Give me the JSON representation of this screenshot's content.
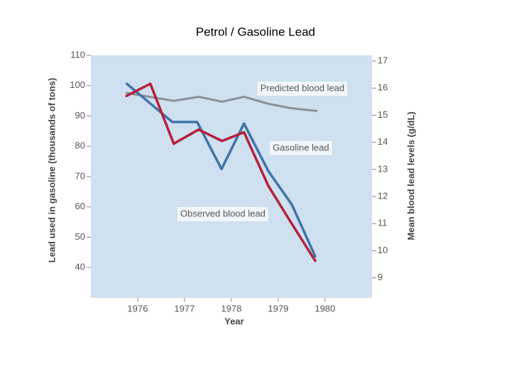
{
  "chart_data": {
    "type": "line",
    "title": "Petrol / Gasoline Lead",
    "x_label": "Year",
    "y_label": "Lead used in gasoline (thousands of tons)",
    "y2_label": "Mean blood lead levels (g/dL)",
    "xlim": [
      1975,
      1981
    ],
    "xticks": [
      1976,
      1977,
      1978,
      1979,
      1980
    ],
    "ylim": [
      30,
      110
    ],
    "yticks": [
      40,
      50,
      60,
      70,
      80,
      90,
      100,
      110
    ],
    "y2lim": [
      8.26,
      17.21
    ],
    "y2ticks": [
      9,
      10,
      11,
      12,
      13,
      14,
      15,
      16,
      17
    ],
    "series": [
      {
        "name": "Predicted blood lead",
        "color": "#8a8f96",
        "axis": "y2",
        "x": [
          1975.76,
          1976.77,
          1977.3,
          1977.8,
          1978.27,
          1978.79,
          1979.27,
          1979.82
        ],
        "values": [
          15.82,
          15.53,
          15.68,
          15.5,
          15.68,
          15.42,
          15.26,
          15.16
        ]
      },
      {
        "name": "Gasoline lead",
        "color": "#3f74a8",
        "x": [
          1975.77,
          1976.74,
          1977.27,
          1977.79,
          1978.27,
          1978.79,
          1979.29,
          1979.79
        ],
        "values": [
          100.6,
          88,
          88,
          72.5,
          87.5,
          71.8,
          60.8,
          43.7
        ]
      },
      {
        "name": "Observed blood lead",
        "color": "#b5203a",
        "axis": "y2",
        "x": [
          1975.76,
          1976.27,
          1976.77,
          1977.3,
          1977.8,
          1978.27,
          1978.79,
          1979.27,
          1979.79
        ],
        "values": [
          15.71,
          16.16,
          13.95,
          14.47,
          14.05,
          14.37,
          12.39,
          11.05,
          9.63
        ]
      }
    ]
  }
}
